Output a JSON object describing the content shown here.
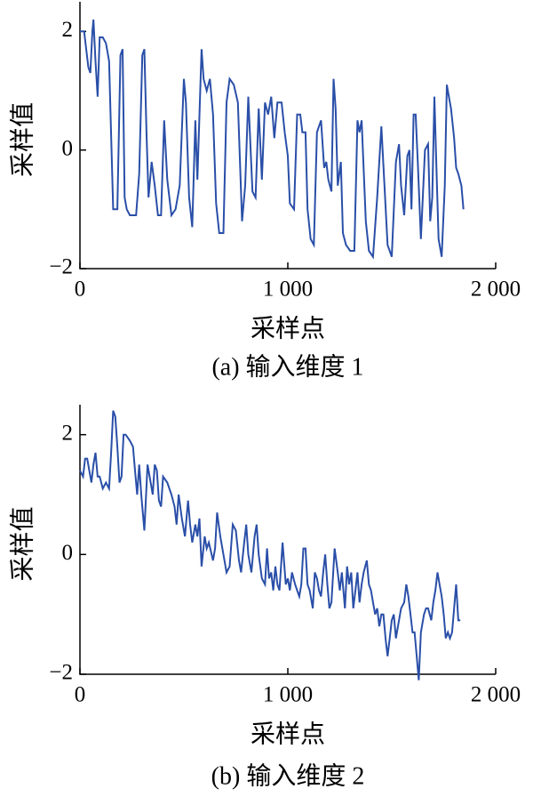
{
  "chart_data": [
    {
      "type": "line",
      "color": "#2a4fa8",
      "xlabel": "采样点",
      "ylabel": "采样值",
      "caption": "(a) 输入维度 1",
      "xlim": [
        0,
        2000
      ],
      "ylim": [
        -2,
        2.5
      ],
      "xticks": [
        0,
        {
          "value": 1000,
          "label": "1 000"
        },
        {
          "value": 2000,
          "label": "2 000"
        }
      ],
      "yticks": [
        {
          "value": -2,
          "label": "−2"
        },
        0,
        2
      ],
      "x": [
        0,
        20,
        40,
        50,
        60,
        65,
        75,
        85,
        95,
        110,
        125,
        140,
        160,
        180,
        195,
        205,
        215,
        225,
        240,
        270,
        285,
        300,
        310,
        320,
        330,
        345,
        360,
        375,
        390,
        405,
        420,
        440,
        460,
        480,
        500,
        510,
        525,
        540,
        555,
        565,
        585,
        595,
        610,
        625,
        640,
        655,
        670,
        690,
        705,
        720,
        740,
        760,
        780,
        795,
        810,
        830,
        845,
        860,
        875,
        890,
        905,
        920,
        935,
        950,
        970,
        985,
        1000,
        1010,
        1030,
        1045,
        1060,
        1070,
        1085,
        1095,
        1110,
        1125,
        1140,
        1160,
        1175,
        1185,
        1195,
        1210,
        1220,
        1230,
        1240,
        1255,
        1265,
        1280,
        1300,
        1320,
        1335,
        1345,
        1355,
        1375,
        1390,
        1410,
        1430,
        1450,
        1465,
        1480,
        1500,
        1520,
        1535,
        1545,
        1560,
        1575,
        1585,
        1595,
        1605,
        1615,
        1625,
        1640,
        1660,
        1675,
        1685,
        1695,
        1705,
        1715,
        1725,
        1740,
        1755,
        1765,
        1775,
        1785,
        1800,
        1810,
        1820,
        1835,
        1845
      ],
      "values": [
        2.0,
        2.0,
        1.4,
        1.3,
        2.0,
        2.2,
        1.5,
        0.9,
        1.9,
        1.9,
        1.8,
        1.5,
        -1.0,
        -1.0,
        1.6,
        1.7,
        -0.8,
        -1.0,
        -1.1,
        -1.1,
        -0.4,
        1.6,
        1.7,
        0.3,
        -0.8,
        -0.2,
        -0.6,
        -1.1,
        -1.1,
        0.5,
        -0.5,
        -1.1,
        -1.0,
        -0.6,
        1.2,
        0.8,
        -0.8,
        -1.3,
        0.5,
        -0.5,
        1.7,
        1.2,
        1.0,
        1.2,
        0.6,
        -0.9,
        -1.4,
        -1.4,
        0.8,
        1.2,
        1.1,
        0.8,
        -1.2,
        -0.6,
        0.9,
        -0.7,
        -0.8,
        0.7,
        -0.5,
        0.8,
        0.6,
        0.9,
        0.2,
        0.8,
        0.8,
        0.3,
        -0.1,
        -0.9,
        -1.0,
        0.6,
        0.6,
        0.3,
        0.3,
        -1.0,
        -1.5,
        -1.6,
        0.3,
        0.5,
        -0.3,
        -0.2,
        -0.5,
        -0.7,
        1.2,
        0.7,
        -0.6,
        -0.2,
        -1.4,
        -1.6,
        -1.7,
        -1.7,
        0.5,
        0.3,
        0.5,
        -1.2,
        -1.7,
        -1.8,
        -0.8,
        0.4,
        -0.6,
        -1.6,
        -1.8,
        -0.2,
        0.1,
        -0.6,
        -1.1,
        -0.1,
        0.0,
        -1.0,
        0.6,
        0.6,
        -0.2,
        -1.5,
        0.0,
        0.1,
        -1.2,
        -0.8,
        0.9,
        -0.3,
        -1.5,
        -1.8,
        -0.6,
        1.1,
        0.9,
        0.7,
        0.2,
        -0.3,
        -0.4,
        -0.6,
        -1.0
      ]
    },
    {
      "type": "line",
      "color": "#2a4fa8",
      "xlabel": "采样点",
      "ylabel": "采样值",
      "caption": "(b) 输入维度 2",
      "xlim": [
        0,
        2000
      ],
      "ylim": [
        -2,
        2.5
      ],
      "xticks": [
        0,
        {
          "value": 1000,
          "label": "1 000"
        },
        {
          "value": 2000,
          "label": "2 000"
        }
      ],
      "yticks": [
        {
          "value": -2,
          "label": "−2"
        },
        0,
        2
      ],
      "x": [
        0,
        15,
        25,
        35,
        45,
        55,
        65,
        75,
        85,
        95,
        110,
        125,
        140,
        150,
        160,
        170,
        180,
        190,
        200,
        210,
        220,
        240,
        255,
        265,
        275,
        285,
        295,
        310,
        325,
        340,
        350,
        360,
        370,
        380,
        390,
        400,
        420,
        440,
        455,
        465,
        475,
        490,
        505,
        520,
        530,
        540,
        555,
        565,
        575,
        585,
        600,
        610,
        620,
        640,
        650,
        660,
        675,
        690,
        705,
        720,
        735,
        750,
        765,
        775,
        790,
        800,
        810,
        825,
        840,
        850,
        860,
        875,
        890,
        900,
        910,
        920,
        930,
        940,
        950,
        960,
        975,
        990,
        1000,
        1010,
        1020,
        1035,
        1045,
        1055,
        1065,
        1075,
        1085,
        1095,
        1105,
        1120,
        1130,
        1140,
        1150,
        1160,
        1170,
        1180,
        1190,
        1200,
        1210,
        1225,
        1240,
        1250,
        1260,
        1275,
        1285,
        1295,
        1305,
        1315,
        1325,
        1335,
        1345,
        1355,
        1365,
        1380,
        1390,
        1400,
        1410,
        1420,
        1430,
        1440,
        1450,
        1460,
        1470,
        1480,
        1490,
        1500,
        1510,
        1520,
        1530,
        1545,
        1560,
        1570,
        1580,
        1590,
        1600,
        1610,
        1620,
        1630,
        1640,
        1655,
        1665,
        1675,
        1690,
        1700,
        1710,
        1720,
        1730,
        1740,
        1750,
        1760,
        1770,
        1780,
        1790,
        1800,
        1810,
        1820,
        1830
      ],
      "values": [
        1.4,
        1.3,
        1.6,
        1.6,
        1.4,
        1.2,
        1.5,
        1.7,
        1.3,
        1.3,
        1.1,
        1.2,
        1.1,
        1.7,
        2.4,
        2.3,
        1.8,
        1.2,
        1.3,
        2.0,
        2.0,
        1.9,
        1.8,
        1.4,
        1.0,
        1.5,
        1.0,
        0.4,
        1.5,
        1.2,
        1.0,
        1.5,
        1.4,
        0.9,
        0.8,
        1.3,
        1.2,
        1.0,
        0.8,
        0.5,
        1.0,
        0.6,
        0.3,
        0.9,
        0.5,
        0.2,
        0.5,
        0.3,
        0.6,
        -0.2,
        0.3,
        0.1,
        0.2,
        -0.1,
        0.1,
        0.7,
        0.3,
        0.0,
        -0.3,
        -0.2,
        0.5,
        0.4,
        -0.1,
        -0.3,
        0.2,
        0.5,
        0.0,
        -0.3,
        0.3,
        0.5,
        0.0,
        -0.4,
        -0.5,
        0.1,
        -0.4,
        -0.3,
        -0.6,
        -0.2,
        -0.5,
        -0.6,
        0.2,
        -0.5,
        -0.4,
        -0.6,
        -0.3,
        -0.5,
        -0.6,
        -0.7,
        -0.5,
        0.1,
        0.1,
        -0.5,
        -0.6,
        -0.9,
        -0.3,
        -0.4,
        -0.6,
        -0.7,
        -0.3,
        0.0,
        -0.5,
        -0.9,
        -0.8,
        0.1,
        -0.3,
        -0.6,
        -0.3,
        -0.9,
        -0.2,
        -0.5,
        -0.3,
        -0.9,
        -0.6,
        -0.3,
        -0.8,
        -0.5,
        -0.3,
        -0.1,
        -0.5,
        -0.6,
        -0.8,
        -1.0,
        -0.9,
        -1.2,
        -1.0,
        -1.0,
        -1.4,
        -1.7,
        -1.4,
        -1.1,
        -1.0,
        -1.4,
        -1.2,
        -0.9,
        -0.8,
        -0.5,
        -0.7,
        -1.0,
        -1.3,
        -1.3,
        -1.7,
        -2.1,
        -1.3,
        -1.0,
        -0.9,
        -0.9,
        -1.1,
        -0.8,
        -0.6,
        -0.3,
        -0.5,
        -0.7,
        -1.0,
        -1.4,
        -1.3,
        -1.4,
        -1.3,
        -0.9,
        -0.5,
        -1.1,
        -1.1
      ]
    }
  ]
}
